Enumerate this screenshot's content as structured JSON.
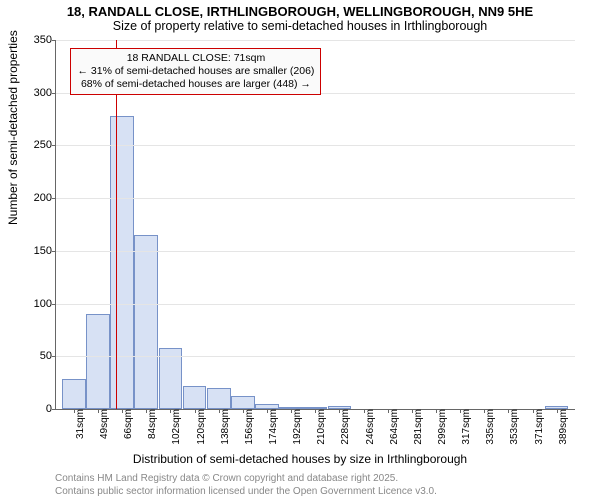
{
  "title_main": "18, RANDALL CLOSE, IRTHLINGBOROUGH, WELLINGBOROUGH, NN9 5HE",
  "title_sub": "Size of property relative to semi-detached houses in Irthlingborough",
  "y_axis_label": "Number of semi-detached properties",
  "x_axis_label": "Distribution of semi-detached houses by size in Irthlingborough",
  "chart": {
    "type": "histogram",
    "ylim": [
      0,
      350
    ],
    "ytick_step": 50,
    "y_ticks": [
      0,
      50,
      100,
      150,
      200,
      250,
      300,
      350
    ],
    "x_start": 31,
    "x_step": 18,
    "categories": [
      "31sqm",
      "49sqm",
      "66sqm",
      "84sqm",
      "102sqm",
      "120sqm",
      "138sqm",
      "156sqm",
      "174sqm",
      "192sqm",
      "210sqm",
      "228sqm",
      "246sqm",
      "264sqm",
      "281sqm",
      "299sqm",
      "317sqm",
      "335sqm",
      "353sqm",
      "371sqm",
      "389sqm"
    ],
    "values": [
      28,
      90,
      278,
      165,
      58,
      22,
      20,
      12,
      5,
      2,
      2,
      3,
      0,
      0,
      0,
      0,
      0,
      0,
      0,
      0,
      3
    ],
    "bar_fill": "#d7e1f4",
    "bar_stroke": "#7792c8",
    "bar_width": 0.98,
    "background_color": "#ffffff",
    "grid_color": "#e5e5e5",
    "axis_color": "#666666",
    "text_color": "#000000",
    "label_fontsize": 12,
    "tick_fontsize": 11,
    "title_fontsize": 13
  },
  "marker": {
    "property_sqm": 71,
    "line_color": "#cc0000"
  },
  "annotation": {
    "line1": "18 RANDALL CLOSE: 71sqm",
    "line2": "← 31% of semi-detached houses are smaller (206)",
    "line3": "68% of semi-detached houses are larger (448) →",
    "border_color": "#cc0000",
    "background_color": "#fafafa"
  },
  "footer": {
    "line1": "Contains HM Land Registry data © Crown copyright and database right 2025.",
    "line2": "Contains public sector information licensed under the Open Government Licence v3.0.",
    "color": "#888888"
  }
}
